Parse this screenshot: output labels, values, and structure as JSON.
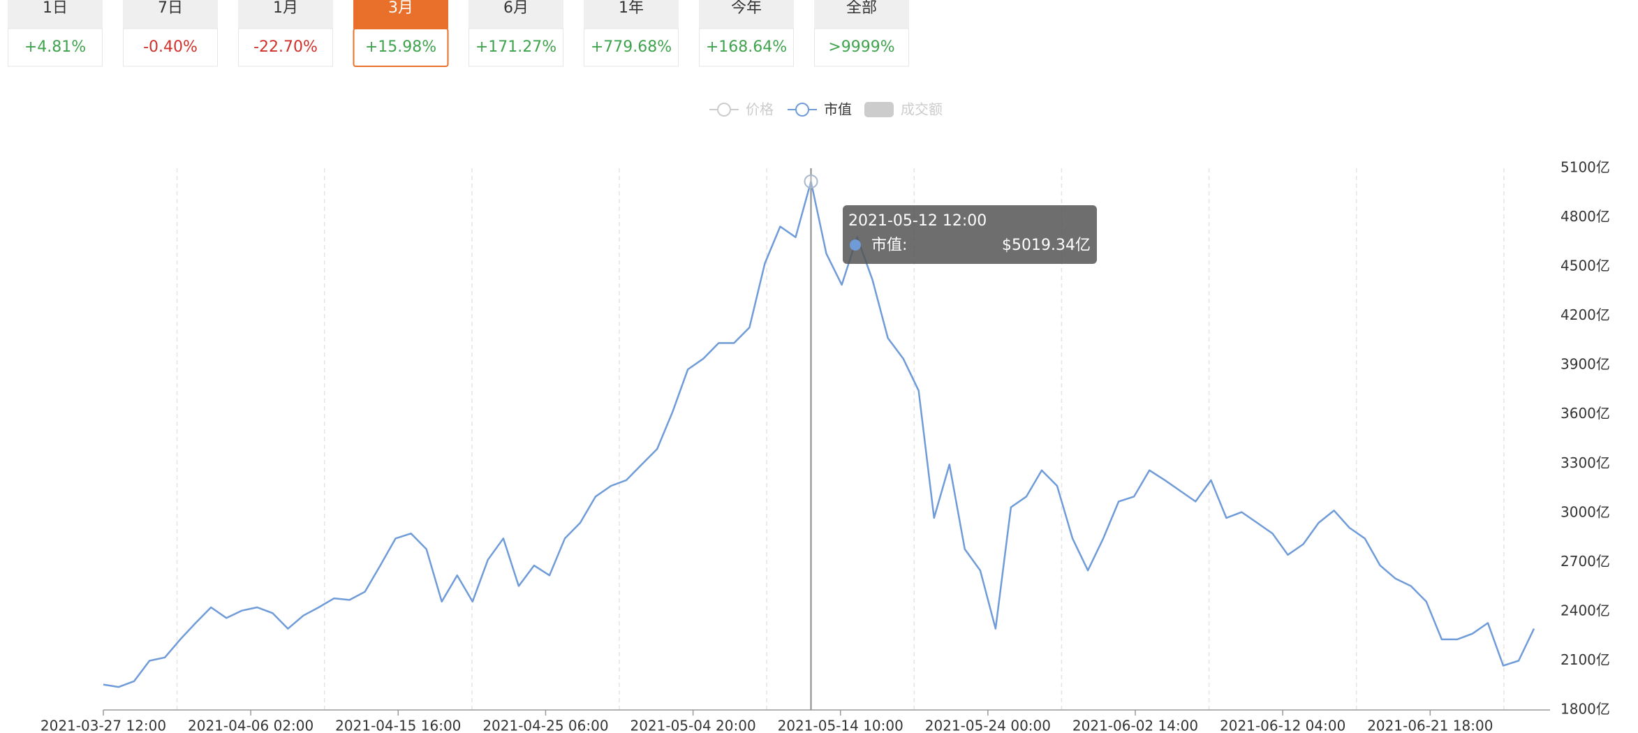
{
  "tabs": [
    {
      "label": "1日",
      "change": "+4.81%"
    },
    {
      "label": "7日",
      "change": "-0.40%"
    },
    {
      "label": "1月",
      "change": "-22.70%"
    },
    {
      "label": "3月",
      "change": "+15.98%"
    },
    {
      "label": "6月",
      "change": "+171.27%"
    },
    {
      "label": "1年",
      "change": "+779.68%"
    },
    {
      "label": "今年",
      "change": "+168.64%"
    },
    {
      "label": "全部",
      "change": ">9999%"
    }
  ],
  "selected_tab": 3,
  "chart_data": {
    "type": "line",
    "legend": [
      {
        "name": "价格",
        "icon": "line",
        "active": false
      },
      {
        "name": "市值",
        "icon": "line",
        "active": true
      },
      {
        "name": "成交额",
        "icon": "rect",
        "active": false
      }
    ],
    "x": [
      "2021-03-27 12:00",
      "2021-03-28 12:00",
      "2021-03-29 12:00",
      "2021-03-30 12:00",
      "2021-03-31 12:00",
      "2021-04-01 12:00",
      "2021-04-02 12:00",
      "2021-04-03 12:00",
      "2021-04-04 12:00",
      "2021-04-05 12:00",
      "2021-04-06 12:00",
      "2021-04-07 12:00",
      "2021-04-08 12:00",
      "2021-04-09 12:00",
      "2021-04-10 12:00",
      "2021-04-11 12:00",
      "2021-04-12 12:00",
      "2021-04-13 12:00",
      "2021-04-14 12:00",
      "2021-04-15 12:00",
      "2021-04-16 12:00",
      "2021-04-17 12:00",
      "2021-04-18 12:00",
      "2021-04-19 12:00",
      "2021-04-20 12:00",
      "2021-04-21 12:00",
      "2021-04-22 12:00",
      "2021-04-23 12:00",
      "2021-04-24 12:00",
      "2021-04-25 12:00",
      "2021-04-26 12:00",
      "2021-04-27 12:00",
      "2021-04-28 12:00",
      "2021-04-29 12:00",
      "2021-04-30 12:00",
      "2021-05-01 12:00",
      "2021-05-02 12:00",
      "2021-05-03 12:00",
      "2021-05-04 12:00",
      "2021-05-05 12:00",
      "2021-05-06 12:00",
      "2021-05-07 12:00",
      "2021-05-08 12:00",
      "2021-05-09 12:00",
      "2021-05-10 12:00",
      "2021-05-11 12:00",
      "2021-05-12 12:00",
      "2021-05-13 12:00",
      "2021-05-14 12:00",
      "2021-05-15 12:00",
      "2021-05-16 12:00",
      "2021-05-17 12:00",
      "2021-05-18 12:00",
      "2021-05-19 12:00",
      "2021-05-20 12:00",
      "2021-05-21 12:00",
      "2021-05-22 12:00",
      "2021-05-23 12:00",
      "2021-05-24 12:00",
      "2021-05-25 12:00",
      "2021-05-26 12:00",
      "2021-05-27 12:00",
      "2021-05-28 12:00",
      "2021-05-29 12:00",
      "2021-05-30 12:00",
      "2021-05-31 12:00",
      "2021-06-01 12:00",
      "2021-06-02 12:00",
      "2021-06-03 12:00",
      "2021-06-04 12:00",
      "2021-06-05 12:00",
      "2021-06-06 12:00",
      "2021-06-07 12:00",
      "2021-06-08 12:00",
      "2021-06-09 12:00",
      "2021-06-10 12:00",
      "2021-06-11 12:00",
      "2021-06-12 12:00",
      "2021-06-13 12:00",
      "2021-06-14 12:00",
      "2021-06-15 12:00",
      "2021-06-16 12:00",
      "2021-06-17 12:00",
      "2021-06-18 12:00",
      "2021-06-19 12:00",
      "2021-06-20 12:00",
      "2021-06-21 12:00",
      "2021-06-22 12:00",
      "2021-06-23 12:00",
      "2021-06-24 12:00",
      "2021-06-25 12:00",
      "2021-06-26 12:00",
      "2021-06-27 12:00",
      "2021-06-28 12:00"
    ],
    "series": [
      {
        "name": "市值",
        "color": "#6f9bd8",
        "values": [
          1955,
          1940,
          1975,
          2100,
          2120,
          2230,
          2330,
          2425,
          2360,
          2405,
          2425,
          2390,
          2295,
          2375,
          2425,
          2480,
          2470,
          2520,
          2680,
          2845,
          2875,
          2780,
          2460,
          2620,
          2460,
          2715,
          2845,
          2555,
          2680,
          2620,
          2845,
          2940,
          3100,
          3165,
          3200,
          3295,
          3390,
          3615,
          3875,
          3940,
          4035,
          4035,
          4130,
          4520,
          4745,
          4680,
          5019.34,
          4580,
          4390,
          4680,
          4420,
          4065,
          3940,
          3745,
          2970,
          3295,
          2780,
          2650,
          2295,
          3035,
          3100,
          3260,
          3165,
          2845,
          2650,
          2845,
          3070,
          3100,
          3260,
          3200,
          3135,
          3070,
          3200,
          2970,
          3005,
          2940,
          2875,
          2745,
          2810,
          2940,
          3015,
          2910,
          2845,
          2680,
          2600,
          2555,
          2460,
          2230,
          2230,
          2265,
          2330,
          2070,
          2100,
          2295
        ]
      }
    ],
    "xlim": [
      "2021-03-27 12:00",
      "2021-06-29 13:00"
    ],
    "xticks": [
      "2021-03-27 12:00",
      "2021-04-06 02:00",
      "2021-04-15 16:00",
      "2021-04-25 06:00",
      "2021-05-04 20:00",
      "2021-05-14 10:00",
      "2021-05-24 00:00",
      "2021-06-02 14:00",
      "2021-06-12 04:00",
      "2021-06-21 18:00"
    ],
    "ylim": [
      1800,
      5100
    ],
    "yticks": [
      {
        "value": 1800,
        "label": "1800亿"
      },
      {
        "value": 2100,
        "label": "2100亿"
      },
      {
        "value": 2400,
        "label": "2400亿"
      },
      {
        "value": 2700,
        "label": "2700亿"
      },
      {
        "value": 3000,
        "label": "3000亿"
      },
      {
        "value": 3300,
        "label": "3300亿"
      },
      {
        "value": 3600,
        "label": "3600亿"
      },
      {
        "value": 3900,
        "label": "3900亿"
      },
      {
        "value": 4200,
        "label": "4200亿"
      },
      {
        "value": 4500,
        "label": "4500亿"
      },
      {
        "value": 4800,
        "label": "4800亿"
      },
      {
        "value": 5100,
        "label": "5100亿"
      }
    ],
    "grid": true,
    "tooltip": {
      "title": "2021-05-12 12:00",
      "label": "市值:",
      "value": 5019.34,
      "value_label": "$5019.34亿"
    }
  }
}
